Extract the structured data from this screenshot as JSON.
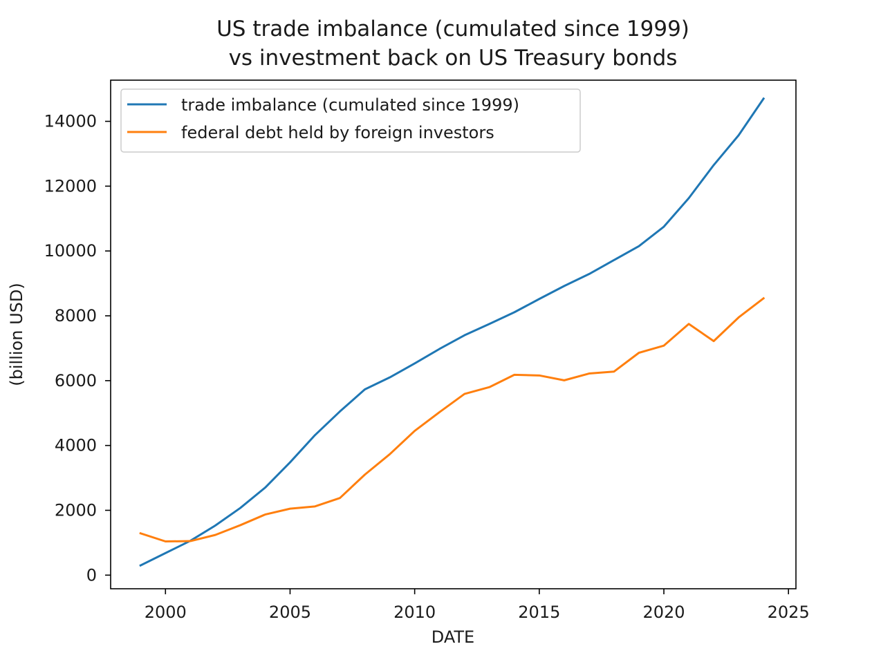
{
  "chart_data": {
    "type": "line",
    "title_lines": [
      "US trade imbalance (cumulated since 1999)",
      "vs investment back on US Treasury bonds"
    ],
    "xlabel": "DATE",
    "ylabel": "(billion USD)",
    "xlim": [
      1997.8,
      2025.3
    ],
    "ylim": [
      -420,
      15270
    ],
    "x_ticks": [
      2000,
      2005,
      2010,
      2015,
      2020,
      2025
    ],
    "y_ticks": [
      0,
      2000,
      4000,
      6000,
      8000,
      10000,
      12000,
      14000
    ],
    "x": [
      1999,
      2000,
      2001,
      2002,
      2003,
      2004,
      2005,
      2006,
      2007,
      2008,
      2009,
      2010,
      2011,
      2012,
      2013,
      2014,
      2015,
      2016,
      2017,
      2018,
      2019,
      2020,
      2021,
      2022,
      2023,
      2024
    ],
    "series": [
      {
        "name": "trade imbalance (cumulated since 1999)",
        "color": "#1f77b4",
        "values": [
          300,
          680,
          1060,
          1530,
          2070,
          2700,
          3480,
          4320,
          5050,
          5730,
          6100,
          6530,
          6980,
          7400,
          7750,
          8110,
          8520,
          8920,
          9290,
          9720,
          10150,
          10750,
          11630,
          12650,
          13570,
          14700
        ]
      },
      {
        "name": "federal debt held by foreign investors",
        "color": "#ff7f0e",
        "values": [
          1290,
          1040,
          1050,
          1240,
          1540,
          1870,
          2050,
          2120,
          2380,
          3100,
          3730,
          4450,
          5030,
          5590,
          5800,
          6180,
          6160,
          6010,
          6220,
          6280,
          6860,
          7080,
          7750,
          7220,
          7950,
          8540
        ]
      }
    ],
    "legend_position": "upper-left",
    "grid": false
  }
}
